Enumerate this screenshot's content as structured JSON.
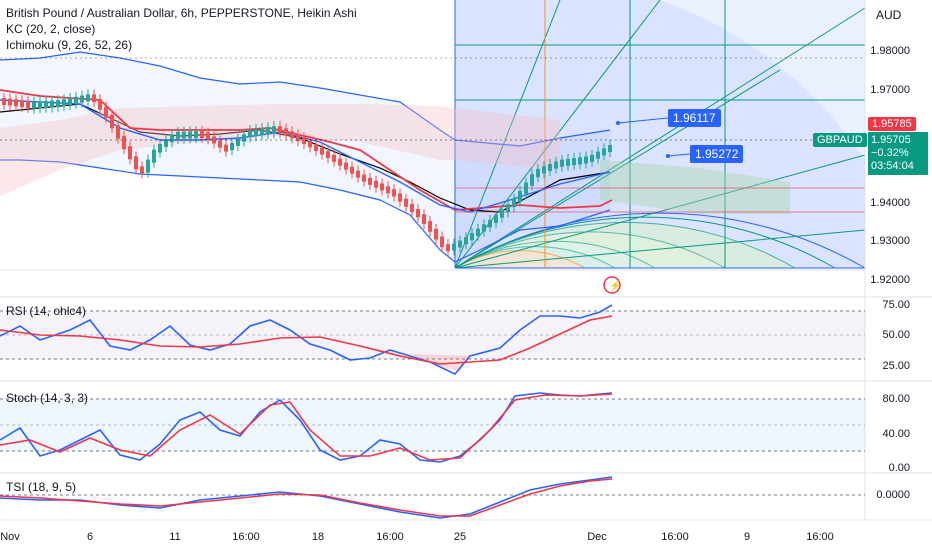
{
  "legend": {
    "title": "British Pound / Australian Dollar, 6h, PEPPERSTONE, Heikin Ashi",
    "kc": "KC (20, 2, close)",
    "ichimoku": "Ichimoku (9, 26, 52, 26)"
  },
  "currency": "AUD",
  "price_axis": [
    "1.98000",
    "1.97000",
    "1.94000",
    "1.93000",
    "1.92000"
  ],
  "price_tags": {
    "red": "1.95785",
    "symbol": "GBPAUD",
    "last": "1.95705",
    "change": "−0.32%",
    "countdown": "03:54:04",
    "callout_upper": "1.96117",
    "callout_lower": "1.95272"
  },
  "panes": {
    "rsi": {
      "label": "RSI (14, ohlc4)",
      "ticks": [
        "75.00",
        "50.00",
        "25.00"
      ]
    },
    "stoch": {
      "label": "Stoch (14, 3, 3)",
      "ticks": [
        "80.00",
        "40.00",
        "0.00"
      ]
    },
    "tsi": {
      "label": "TSI (18, 9, 5)",
      "ticks": [
        "0.0000"
      ]
    }
  },
  "time_axis": [
    "Nov",
    "6",
    "11",
    "16:00",
    "18",
    "16:00",
    "25",
    "Dec",
    "16:00",
    "9",
    "16:00"
  ],
  "colors": {
    "up": "#26a69a",
    "down": "#ef5350",
    "blue": "#2962ff",
    "red": "#f23645",
    "fan_blue": "#2962ff",
    "fan_green": "#089981"
  }
}
